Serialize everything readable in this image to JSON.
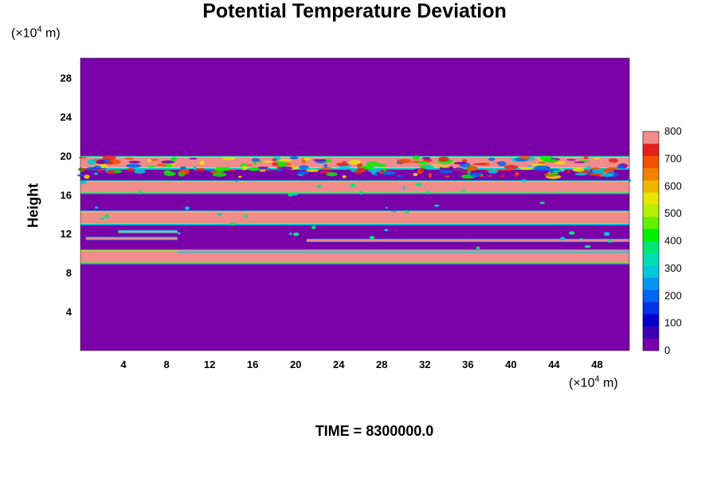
{
  "chart_data": {
    "type": "heatmap",
    "title": "Potential Temperature Deviation",
    "ylabel": "Height",
    "xunit": "(×10⁴ m)",
    "yunit": "(×10⁴ m)",
    "xlim": [
      0,
      51
    ],
    "ylim": [
      0,
      30
    ],
    "x_ticks": [
      4,
      8,
      12,
      16,
      20,
      24,
      28,
      32,
      36,
      40,
      44,
      48
    ],
    "y_ticks": [
      4,
      8,
      12,
      16,
      20,
      24,
      28
    ],
    "colorbar": {
      "min": 0,
      "max": 800,
      "ticks": [
        0,
        100,
        200,
        300,
        400,
        500,
        600,
        700,
        800
      ],
      "colors": [
        "#7a00a8",
        "#3c00b4",
        "#0000c8",
        "#0032e6",
        "#0064f0",
        "#0096f0",
        "#00c8dc",
        "#00dcb4",
        "#00e678",
        "#00f000",
        "#64f000",
        "#b4f000",
        "#e6e600",
        "#f0b400",
        "#f08200",
        "#f05000",
        "#e61e1e",
        "#f08c8c"
      ]
    },
    "background_value": 0,
    "bands": [
      {
        "y0": 9.1,
        "y1": 10.2,
        "value": 800
      },
      {
        "y0": 13.1,
        "y1": 14.2,
        "value": 800
      },
      {
        "y0": 16.3,
        "y1": 17.3,
        "value": 800
      },
      {
        "y0": 18.8,
        "y1": 19.8,
        "value": 800,
        "turbulent": true
      }
    ],
    "thin_lines": [
      {
        "y": 11.3,
        "x0": 21.0,
        "x1": 51.0,
        "value": 450
      },
      {
        "y": 11.5,
        "x0": 0.5,
        "x1": 9.0,
        "value": 450
      },
      {
        "y": 12.2,
        "x0": 3.5,
        "x1": 9.0,
        "value": 350
      },
      {
        "y": 10.2,
        "x0": 9.0,
        "x1": 51.0,
        "value": 350
      }
    ]
  },
  "time_label": "TIME = 8300000.0"
}
